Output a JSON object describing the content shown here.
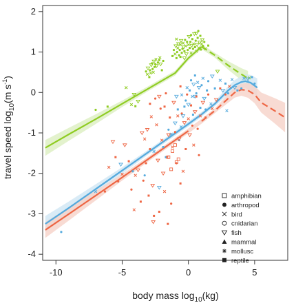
{
  "chart_data": {
    "type": "scatter",
    "xlabel": {
      "main": "body mass  log",
      "sub": "10",
      "tail": "(kg)"
    },
    "ylabel": {
      "main": "travel speed  log",
      "sub": "10",
      "tail": "(m s",
      "sup": "-1",
      "close": ")"
    },
    "x_ticks": [
      "-10",
      "-5",
      "0",
      "5"
    ],
    "y_ticks": [
      "2",
      "1",
      "0",
      "-1",
      "-2",
      "-3",
      "-4"
    ],
    "xlim": [
      -11,
      7.5
    ],
    "ylim": [
      -4.15,
      2.15
    ],
    "grid": false,
    "legend_position": "bottom-right",
    "legend": [
      {
        "label": "amphibian",
        "marker": "square-open"
      },
      {
        "label": "arthropod",
        "marker": "circle-filled"
      },
      {
        "label": "bird",
        "marker": "cross"
      },
      {
        "label": "cnidarian",
        "marker": "circle-open"
      },
      {
        "label": "fish",
        "marker": "triangle-down-open"
      },
      {
        "label": "mammal",
        "marker": "triangle-up-filled"
      },
      {
        "label": "mollusc",
        "marker": "asterisk"
      },
      {
        "label": "reptile",
        "marker": "square-filled"
      }
    ],
    "series": [
      {
        "color": "#8fcc22",
        "line": [
          [
            -10.8,
            -1.37
          ],
          [
            -9,
            -1.03
          ],
          [
            -7,
            -0.66
          ],
          [
            -5,
            -0.28
          ],
          [
            -3,
            0.1
          ],
          [
            -1,
            0.48
          ],
          [
            0,
            0.85
          ],
          [
            1,
            1.13
          ],
          [
            2,
            0.92
          ],
          [
            3,
            0.67
          ],
          [
            4,
            0.45
          ],
          [
            4.5,
            0.35
          ]
        ],
        "line_solid_until": 1.0,
        "line_dashed_from": 1.0,
        "points": [
          [
            -3.2,
            0.52
          ],
          [
            -3.1,
            0.45
          ],
          [
            -3.05,
            0.6
          ],
          [
            -2.95,
            0.38
          ],
          [
            -2.9,
            0.55
          ],
          [
            -2.85,
            0.48
          ],
          [
            -2.8,
            0.68
          ],
          [
            -2.75,
            0.72
          ],
          [
            -2.7,
            0.58
          ],
          [
            -2.65,
            0.5
          ],
          [
            -2.6,
            0.77
          ],
          [
            -2.55,
            0.63
          ],
          [
            -2.5,
            0.7
          ],
          [
            -2.45,
            0.82
          ],
          [
            -2.4,
            0.66
          ],
          [
            -2.3,
            0.74
          ],
          [
            -2.2,
            0.8
          ],
          [
            -2.15,
            0.86
          ],
          [
            -2.1,
            0.7
          ],
          [
            -2.0,
            0.55
          ],
          [
            -1.9,
            0.78
          ],
          [
            -4.3,
            -0.3
          ],
          [
            -3.8,
            -0.22
          ],
          [
            -6.1,
            -0.35
          ],
          [
            -7.0,
            -0.43
          ],
          [
            -4.7,
            0.12
          ],
          [
            -4.1,
            -0.05
          ],
          [
            -1.2,
            0.9
          ],
          [
            -1.1,
            1.05
          ],
          [
            -1.0,
            0.95
          ],
          [
            -0.95,
            1.15
          ],
          [
            -0.9,
            0.85
          ],
          [
            -0.85,
            1.0
          ],
          [
            -0.8,
            1.1
          ],
          [
            -0.75,
            1.2
          ],
          [
            -0.7,
            0.92
          ],
          [
            -0.65,
            1.05
          ],
          [
            -0.6,
            1.18
          ],
          [
            -0.55,
            1.28
          ],
          [
            -0.5,
            0.98
          ],
          [
            -0.45,
            1.08
          ],
          [
            -0.4,
            1.22
          ],
          [
            -0.35,
            1.12
          ],
          [
            -0.3,
            1.02
          ],
          [
            -0.25,
            1.3
          ],
          [
            -0.2,
            1.15
          ],
          [
            -0.15,
            0.95
          ],
          [
            -0.1,
            1.25
          ],
          [
            -0.05,
            1.05
          ],
          [
            0.0,
            1.18
          ],
          [
            0.05,
            1.38
          ],
          [
            0.1,
            1.1
          ],
          [
            0.15,
            1.25
          ],
          [
            0.2,
            0.98
          ],
          [
            0.25,
            1.16
          ],
          [
            0.3,
            1.32
          ],
          [
            0.35,
            1.08
          ],
          [
            0.4,
            1.2
          ],
          [
            0.45,
            1.45
          ],
          [
            0.5,
            1.12
          ],
          [
            0.55,
            1.28
          ],
          [
            0.6,
            1.02
          ],
          [
            0.65,
            1.18
          ],
          [
            0.7,
            1.35
          ],
          [
            0.75,
            1.52
          ],
          [
            0.8,
            1.1
          ],
          [
            0.85,
            1.24
          ],
          [
            0.9,
            1.4
          ],
          [
            0.95,
            1.06
          ],
          [
            1.0,
            1.2
          ],
          [
            1.05,
            1.3
          ],
          [
            1.1,
            1.15
          ],
          [
            1.2,
            1.25
          ],
          [
            1.3,
            1.08
          ],
          [
            -0.3,
            0.85
          ],
          [
            -0.6,
            0.88
          ],
          [
            0.2,
            1.42
          ],
          [
            -0.9,
            1.32
          ],
          [
            0.6,
            1.46
          ],
          [
            1.5,
            1.16
          ],
          [
            4.3,
            0.38
          ],
          [
            4.6,
            0.36
          ],
          [
            2.2,
            0.52
          ],
          [
            -4.0,
            -0.34
          ]
        ]
      },
      {
        "color": "#55aadd",
        "line": [
          [
            -10.8,
            -3.25
          ],
          [
            -9,
            -2.85
          ],
          [
            -7,
            -2.39
          ],
          [
            -5,
            -1.93
          ],
          [
            -3,
            -1.47
          ],
          [
            -1,
            -1.01
          ],
          [
            0,
            -0.78
          ],
          [
            1,
            -0.54
          ],
          [
            2,
            -0.28
          ],
          [
            3,
            0.05
          ],
          [
            3.5,
            0.18
          ],
          [
            4,
            0.26
          ],
          [
            4.3,
            0.28
          ],
          [
            4.7,
            0.24
          ],
          [
            5.2,
            0.12
          ]
        ],
        "points": [
          [
            -9.6,
            -3.45
          ],
          [
            -7.0,
            -2.45
          ],
          [
            -5.1,
            -1.78
          ],
          [
            -4.2,
            -1.95
          ],
          [
            -3.3,
            -2.05
          ],
          [
            -2.6,
            -1.46
          ],
          [
            -2.2,
            -2.35
          ],
          [
            -1.9,
            -1.35
          ],
          [
            -1.5,
            -0.92
          ],
          [
            -1.3,
            -1.03
          ],
          [
            -1.0,
            -0.76
          ],
          [
            -0.8,
            -0.42
          ],
          [
            -0.7,
            -1.18
          ],
          [
            -0.55,
            -0.85
          ],
          [
            -0.4,
            -0.58
          ],
          [
            -0.3,
            -0.35
          ],
          [
            -0.2,
            -0.2
          ],
          [
            -0.1,
            0.12
          ],
          [
            0.0,
            -0.3
          ],
          [
            0.1,
            0.05
          ],
          [
            0.2,
            0.3
          ],
          [
            0.3,
            -0.1
          ],
          [
            0.4,
            0.2
          ],
          [
            0.5,
            0.42
          ],
          [
            0.6,
            -0.02
          ],
          [
            0.7,
            0.25
          ],
          [
            0.8,
            0.12
          ],
          [
            0.9,
            -0.38
          ],
          [
            1.0,
            0.18
          ],
          [
            1.1,
            0.35
          ],
          [
            1.2,
            -0.15
          ],
          [
            1.4,
            0.05
          ],
          [
            1.5,
            0.28
          ],
          [
            1.7,
            -0.28
          ],
          [
            1.8,
            0.4
          ],
          [
            2.0,
            0.1
          ],
          [
            2.2,
            -0.2
          ],
          [
            2.4,
            0.3
          ],
          [
            2.6,
            0.05
          ],
          [
            2.8,
            0.22
          ],
          [
            3.0,
            -0.02
          ],
          [
            3.3,
            0.32
          ],
          [
            3.5,
            0.12
          ],
          [
            3.7,
            0.05
          ],
          [
            4.0,
            0.1
          ],
          [
            4.2,
            0.35
          ],
          [
            4.5,
            0.33
          ],
          [
            4.8,
            0.38
          ],
          [
            5.0,
            0.22
          ],
          [
            -0.5,
            -0.06
          ],
          [
            0.5,
            -0.1
          ],
          [
            -1.7,
            -1.6
          ],
          [
            1.3,
            -0.42
          ],
          [
            2.9,
            -0.45
          ],
          [
            -0.9,
            -0.1
          ],
          [
            0.35,
            -0.55
          ]
        ]
      },
      {
        "color": "#ee6644",
        "line": [
          [
            -10.8,
            -3.4
          ],
          [
            -9,
            -3.0
          ],
          [
            -7,
            -2.55
          ],
          [
            -5,
            -2.1
          ],
          [
            -3,
            -1.64
          ],
          [
            -1,
            -1.18
          ],
          [
            0,
            -0.95
          ],
          [
            1,
            -0.71
          ],
          [
            2,
            -0.45
          ],
          [
            3,
            -0.15
          ],
          [
            3.5,
            0.0
          ],
          [
            4,
            0.07
          ],
          [
            4.5,
            0.05
          ],
          [
            5.0,
            -0.05
          ],
          [
            5.5,
            -0.25
          ],
          [
            6.5,
            -0.45
          ],
          [
            7.3,
            -0.62
          ]
        ],
        "line_solid_until": 0.5,
        "line_dashed_from": 0.5,
        "points": [
          [
            -6.3,
            -2.45
          ],
          [
            -6.0,
            -1.85
          ],
          [
            -5.7,
            -1.22
          ],
          [
            -5.5,
            -1.6
          ],
          [
            -5.3,
            -2.2
          ],
          [
            -5.0,
            -2.02
          ],
          [
            -4.8,
            -1.3
          ],
          [
            -4.5,
            -1.7
          ],
          [
            -4.3,
            -2.4
          ],
          [
            -4.0,
            -2.05
          ],
          [
            -3.8,
            -1.92
          ],
          [
            -3.6,
            -2.7
          ],
          [
            -3.4,
            -2.18
          ],
          [
            -3.3,
            -1.15
          ],
          [
            -3.1,
            -0.92
          ],
          [
            -3.0,
            -2.55
          ],
          [
            -2.9,
            -1.4
          ],
          [
            -2.8,
            -0.6
          ],
          [
            -2.7,
            -2.3
          ],
          [
            -2.6,
            -3.05
          ],
          [
            -2.5,
            -0.15
          ],
          [
            -2.4,
            -0.8
          ],
          [
            -2.3,
            -1.68
          ],
          [
            -2.2,
            -2.95
          ],
          [
            -2.1,
            -0.4
          ],
          [
            -2.0,
            -1.18
          ],
          [
            -1.9,
            -2.0
          ],
          [
            -1.8,
            -0.35
          ],
          [
            -1.7,
            -0.02
          ],
          [
            -1.6,
            -1.6
          ],
          [
            -1.5,
            -1.05
          ],
          [
            -1.4,
            -0.62
          ],
          [
            -1.3,
            -2.75
          ],
          [
            -1.2,
            -1.35
          ],
          [
            -1.1,
            -0.25
          ],
          [
            -1.0,
            -0.98
          ],
          [
            -0.9,
            -1.75
          ],
          [
            -0.8,
            -0.58
          ],
          [
            -0.7,
            -1.15
          ],
          [
            -0.6,
            0.15
          ],
          [
            -0.5,
            -0.52
          ],
          [
            -0.4,
            -1.95
          ],
          [
            -0.3,
            -0.75
          ],
          [
            -0.2,
            -1.4
          ],
          [
            -0.1,
            -0.05
          ],
          [
            0.0,
            -0.65
          ],
          [
            0.1,
            -1.05
          ],
          [
            0.2,
            -0.32
          ],
          [
            0.3,
            -0.82
          ],
          [
            0.4,
            -1.3
          ],
          [
            0.5,
            -0.48
          ],
          [
            0.6,
            -0.1
          ],
          [
            0.7,
            -0.9
          ],
          [
            0.9,
            -0.58
          ],
          [
            1.1,
            -0.25
          ],
          [
            1.3,
            -0.62
          ],
          [
            1.5,
            -0.05
          ],
          [
            1.8,
            -0.4
          ],
          [
            2.1,
            -0.18
          ],
          [
            2.4,
            0.1
          ],
          [
            2.8,
            -0.05
          ],
          [
            3.1,
            0.15
          ],
          [
            -2.65,
            -3.2
          ],
          [
            -1.55,
            -3.25
          ],
          [
            -3.2,
            -1.75
          ],
          [
            -4.1,
            -2.9
          ],
          [
            -2.2,
            -0.1
          ],
          [
            -0.6,
            -2.25
          ],
          [
            0.8,
            -1.55
          ],
          [
            -1.8,
            -2.45
          ],
          [
            -3.5,
            -1.0
          ],
          [
            -2.9,
            -0.28
          ]
        ]
      }
    ],
    "open_square_points": [
      [
        -1.2,
        -1.45
      ],
      [
        -0.9,
        -1.72
      ],
      [
        -1.5,
        -1.6
      ],
      [
        -1.0,
        -1.3
      ],
      [
        -0.75,
        -1.65
      ],
      [
        -1.3,
        -1.9
      ]
    ]
  }
}
